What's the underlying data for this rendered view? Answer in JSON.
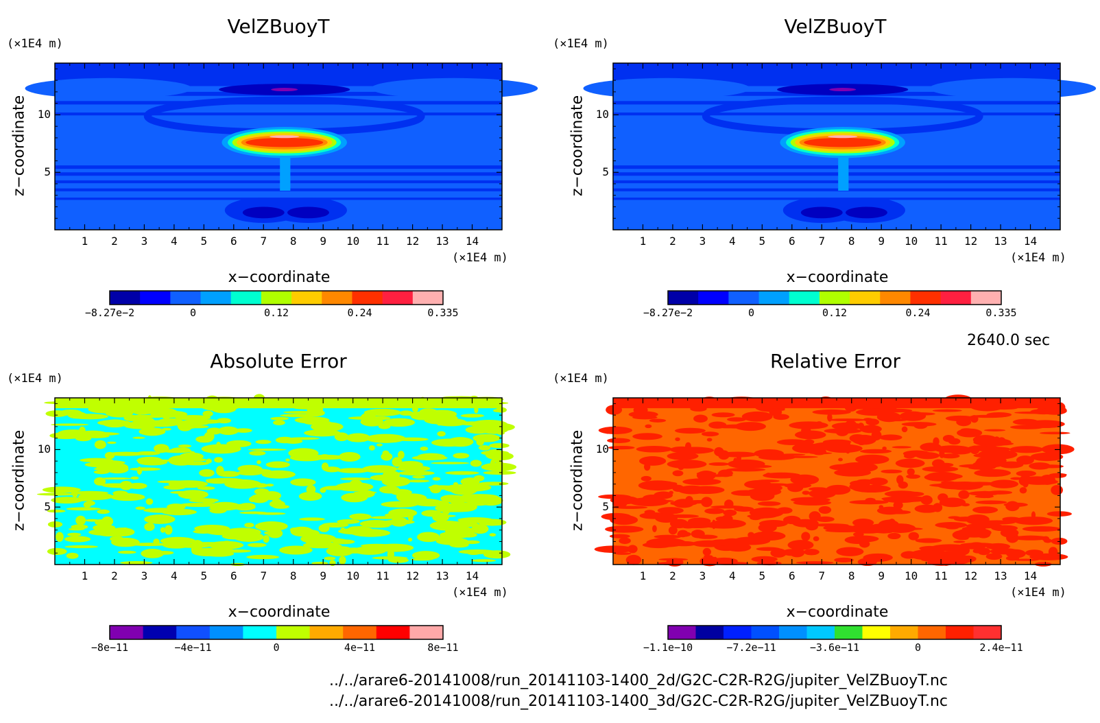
{
  "time_label": "2640.0 sec",
  "file_paths": [
    "../../arare6-20141008/run_20141103-1400_2d/G2C-C2R-R2G/jupiter_VelZBuoyT.nc",
    "../../arare6-20141008/run_20141103-1400_3d/G2C-C2R-R2G/jupiter_VelZBuoyT.nc"
  ],
  "panels": [
    {
      "title": "VelZBuoyT",
      "xlabel": "x−coordinate",
      "ylabel": "z−coordinate",
      "x_unit": "(×1E4 m)",
      "y_unit": "(×1E4 m)",
      "x_ticks": [
        "1",
        "2",
        "3",
        "4",
        "5",
        "6",
        "7",
        "8",
        "9",
        "10",
        "11",
        "12",
        "13",
        "14"
      ],
      "y_ticks": [
        "5",
        "10"
      ],
      "colorbar_labels": [
        "−8.27e−2",
        "0",
        "0.12",
        "0.24",
        "0.335"
      ],
      "colorbar_colors": [
        "#0000a8",
        "#0000ff",
        "#1060ff",
        "#00a0ff",
        "#00ffd0",
        "#b0ff00",
        "#ffcc00",
        "#ff8800",
        "#ff3000",
        "#ff2040",
        "#ffb0b0"
      ]
    },
    {
      "title": "VelZBuoyT",
      "xlabel": "x−coordinate",
      "ylabel": "z−coordinate",
      "x_unit": "(×1E4 m)",
      "y_unit": "(×1E4 m)",
      "x_ticks": [
        "1",
        "2",
        "3",
        "4",
        "5",
        "6",
        "7",
        "8",
        "9",
        "10",
        "11",
        "12",
        "13",
        "14"
      ],
      "y_ticks": [
        "5",
        "10"
      ],
      "colorbar_labels": [
        "−8.27e−2",
        "0",
        "0.12",
        "0.24",
        "0.335"
      ],
      "colorbar_colors": [
        "#0000a8",
        "#0000ff",
        "#1060ff",
        "#00a0ff",
        "#00ffd0",
        "#b0ff00",
        "#ffcc00",
        "#ff8800",
        "#ff3000",
        "#ff2040",
        "#ffb0b0"
      ]
    },
    {
      "title": "Absolute Error",
      "xlabel": "x−coordinate",
      "ylabel": "z−coordinate",
      "x_unit": "(×1E4 m)",
      "y_unit": "(×1E4 m)",
      "x_ticks": [
        "1",
        "2",
        "3",
        "4",
        "5",
        "6",
        "7",
        "8",
        "9",
        "10",
        "11",
        "12",
        "13",
        "14"
      ],
      "y_ticks": [
        "5",
        "10"
      ],
      "colorbar_labels": [
        "−8e−11",
        "−4e−11",
        "0",
        "4e−11",
        "8e−11"
      ],
      "colorbar_colors": [
        "#8000b0",
        "#0000b0",
        "#1050ff",
        "#0090ff",
        "#00ffff",
        "#c0ff00",
        "#ffaa00",
        "#ff6600",
        "#ff0000",
        "#ffa8a8"
      ]
    },
    {
      "title": "Relative Error",
      "xlabel": "x−coordinate",
      "ylabel": "z−coordinate",
      "x_unit": "(×1E4 m)",
      "y_unit": "(×1E4 m)",
      "x_ticks": [
        "1",
        "2",
        "3",
        "4",
        "5",
        "6",
        "7",
        "8",
        "9",
        "10",
        "11",
        "12",
        "13",
        "14"
      ],
      "y_ticks": [
        "5",
        "10"
      ],
      "colorbar_labels": [
        "−1.1e−10",
        "−7.2e−11",
        "−3.6e−11",
        "0",
        "2.4e−11"
      ],
      "colorbar_colors": [
        "#8000b0",
        "#0000a0",
        "#0020ff",
        "#0050ff",
        "#0090ff",
        "#00c8ff",
        "#30e030",
        "#ffff00",
        "#ffaa00",
        "#ff6600",
        "#ff2000",
        "#ff3030"
      ]
    }
  ],
  "chart_data": [
    {
      "type": "heatmap",
      "title": "VelZBuoyT",
      "xlabel": "x−coordinate",
      "ylabel": "z−coordinate",
      "x_unit": "×1E4 m",
      "y_unit": "×1E4 m",
      "xlim": [
        0,
        15
      ],
      "ylim": [
        0,
        14.5
      ],
      "value_range": [
        -0.0827,
        0.335
      ],
      "colorbar_ticks": [
        -0.0827,
        0,
        0.12,
        0.24,
        0.335
      ],
      "features": "warm updraft cap (max ~0.3) centered near x=7.7, z=7.5; background near 0"
    },
    {
      "type": "heatmap",
      "title": "VelZBuoyT",
      "xlabel": "x−coordinate",
      "ylabel": "z−coordinate",
      "x_unit": "×1E4 m",
      "y_unit": "×1E4 m",
      "xlim": [
        0,
        15
      ],
      "ylim": [
        0,
        14.5
      ],
      "value_range": [
        -0.0827,
        0.335
      ],
      "colorbar_ticks": [
        -0.0827,
        0,
        0.12,
        0.24,
        0.335
      ],
      "features": "warm updraft cap (max ~0.3) centered near x=7.7, z=7.5; background near 0"
    },
    {
      "type": "heatmap",
      "title": "Absolute Error",
      "xlabel": "x−coordinate",
      "ylabel": "z−coordinate",
      "x_unit": "×1E4 m",
      "y_unit": "×1E4 m",
      "xlim": [
        0,
        15
      ],
      "ylim": [
        0,
        14.5
      ],
      "colorbar_ticks": [
        -8e-11,
        -4e-11,
        0,
        4e-11,
        8e-11
      ],
      "features": "values alternate between ~0 and ~2e-11 across the domain"
    },
    {
      "type": "heatmap",
      "title": "Relative Error",
      "xlabel": "x−coordinate",
      "ylabel": "z−coordinate",
      "x_unit": "×1E4 m",
      "y_unit": "×1E4 m",
      "xlim": [
        0,
        15
      ],
      "ylim": [
        0,
        14.5
      ],
      "colorbar_ticks": [
        -1.1e-10,
        -7.2e-11,
        -3.6e-11,
        0,
        2.4e-11
      ],
      "features": "values mostly between 0 and 2.4e-11 across the domain"
    }
  ]
}
